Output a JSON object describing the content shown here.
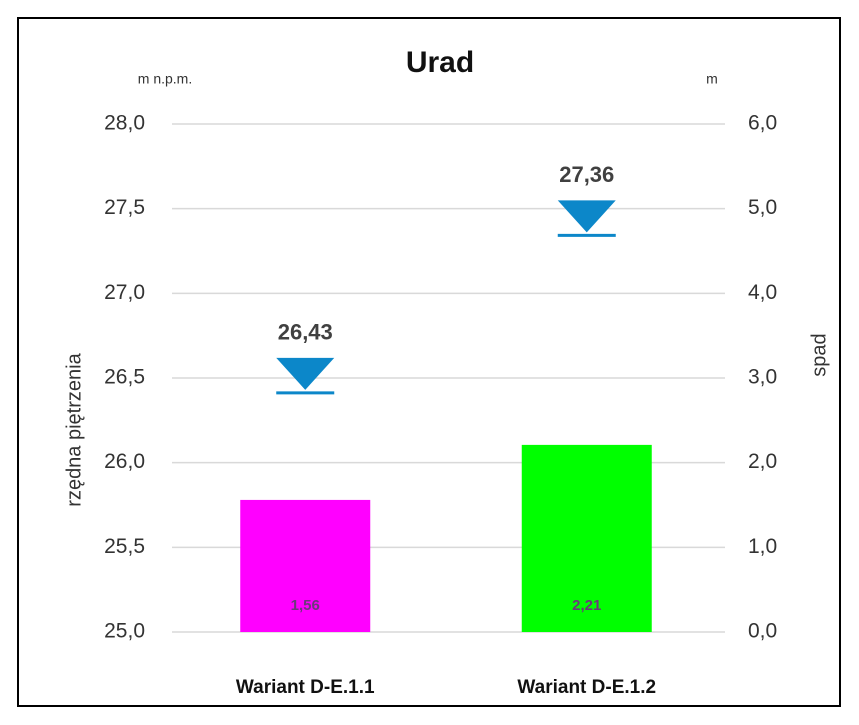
{
  "chart_data": {
    "type": "bar",
    "title": "Urad",
    "ylabel": "rzędna piętrzenia",
    "y2label": "spad",
    "yunit": "m n.p.m.",
    "y2unit": "m",
    "categories": [
      "Wariant D-E.1.1",
      "Wariant D-E.1.2"
    ],
    "series": [
      {
        "type": "bar",
        "axis": "y2",
        "colors": [
          "#ff00ff",
          "#00ff00"
        ],
        "values": [
          1.56,
          2.21
        ],
        "value_labels": [
          "1,56",
          "2,21"
        ]
      },
      {
        "type": "marker",
        "axis": "y",
        "color": "#0c87c9",
        "values": [
          26.43,
          27.36
        ],
        "value_labels": [
          "26,43",
          "27,36"
        ]
      }
    ],
    "ylim": [
      25,
      28
    ],
    "yticks": [
      {
        "value": 25,
        "label": "25,0"
      },
      {
        "value": 25.5,
        "label": "25,5"
      },
      {
        "value": 26,
        "label": "26,0"
      },
      {
        "value": 26.5,
        "label": "26,5"
      },
      {
        "value": 27,
        "label": "27,0"
      },
      {
        "value": 27.5,
        "label": "27,5"
      },
      {
        "value": 28,
        "label": "28,0"
      }
    ],
    "y2lim": [
      0,
      6
    ],
    "y2ticks": [
      {
        "value": 0,
        "label": "0,0"
      },
      {
        "value": 1,
        "label": "1,0"
      },
      {
        "value": 2,
        "label": "2,0"
      },
      {
        "value": 3,
        "label": "3,0"
      },
      {
        "value": 4,
        "label": "4,0"
      },
      {
        "value": 5,
        "label": "5,0"
      },
      {
        "value": 6,
        "label": "6,0"
      }
    ],
    "grid": true
  }
}
